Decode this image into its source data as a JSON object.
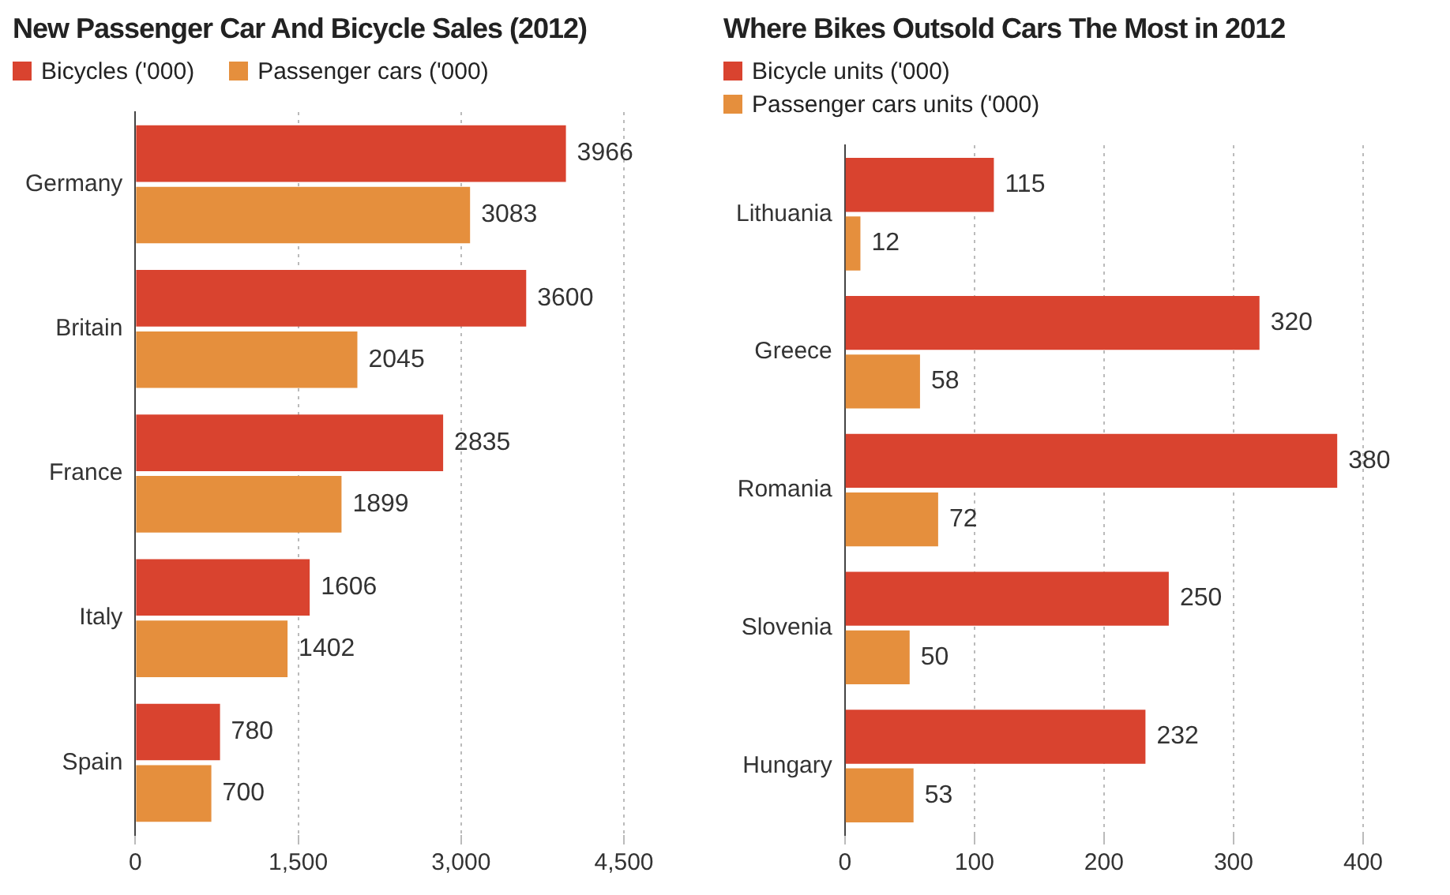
{
  "chart_data": [
    {
      "type": "bar",
      "orientation": "horizontal",
      "title": "New Passenger Car And Bicycle Sales (2012)",
      "categories": [
        "Germany",
        "Britain",
        "France",
        "Italy",
        "Spain"
      ],
      "series": [
        {
          "name": "Bicycles ('000)",
          "color": "#d9432f",
          "values": [
            3966,
            3600,
            2835,
            1606,
            780
          ]
        },
        {
          "name": "Passenger cars ('000)",
          "color": "#e58f3d",
          "values": [
            3083,
            2045,
            1899,
            1402,
            700
          ]
        }
      ],
      "xlim": [
        0,
        4500
      ],
      "xticks": [
        0,
        {
          "value": 1500,
          "label": "1,500"
        },
        {
          "value": 3000,
          "label": "3,000"
        },
        {
          "value": 4500,
          "label": "4,500"
        }
      ],
      "grid": "x",
      "legend": "top left",
      "data_labels": true
    },
    {
      "type": "bar",
      "orientation": "horizontal",
      "title": "Where Bikes Outsold Cars The Most in 2012",
      "categories": [
        "Lithuania",
        "Greece",
        "Romania",
        "Slovenia",
        "Hungary"
      ],
      "series": [
        {
          "name": "Bicycle units ('000)",
          "color": "#d9432f",
          "values": [
            115,
            320,
            380,
            250,
            232
          ]
        },
        {
          "name": "Passenger cars units ('000)",
          "color": "#e58f3d",
          "values": [
            12,
            58,
            72,
            50,
            53
          ]
        }
      ],
      "xlim": [
        0,
        400
      ],
      "xticks": [
        0,
        100,
        200,
        300,
        400
      ],
      "grid": "x",
      "legend": "top left",
      "data_labels": true
    }
  ]
}
